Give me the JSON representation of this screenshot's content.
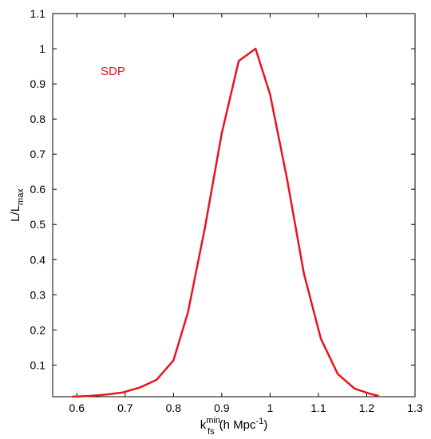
{
  "chart_data": {
    "type": "line",
    "title": "",
    "xlabel": {
      "base": "k",
      "sub": "fs",
      "sup": "min",
      "unit_prefix": "(h Mpc",
      "unit_sup": "-1",
      "unit_suffix": ")"
    },
    "ylabel": {
      "base": "L/L",
      "sub": "max"
    },
    "xlim": [
      0.55,
      1.3
    ],
    "ylim": [
      0.01,
      1.1
    ],
    "xticks": [
      "0.6",
      "0.7",
      "0.8",
      "0.9",
      "1",
      "1.1",
      "1.2",
      "1.3"
    ],
    "yticks": [
      "0.1",
      "0.2",
      "0.3",
      "0.4",
      "0.5",
      "0.6",
      "0.7",
      "0.8",
      "0.9",
      "1",
      "1.1"
    ],
    "grid": false,
    "annotation": "SDP",
    "color": "#e8141c",
    "series": [
      {
        "x": [
          0.59,
          0.625,
          0.66,
          0.695,
          0.73,
          0.765,
          0.8,
          0.83,
          0.865,
          0.9,
          0.935,
          0.97,
          1.0,
          1.035,
          1.07,
          1.105,
          1.14,
          1.175,
          1.21,
          1.225
        ],
        "y": [
          0.01,
          0.012,
          0.016,
          0.022,
          0.036,
          0.058,
          0.113,
          0.25,
          0.49,
          0.76,
          0.965,
          1.0,
          0.87,
          0.63,
          0.36,
          0.175,
          0.075,
          0.033,
          0.017,
          0.012
        ]
      }
    ]
  }
}
